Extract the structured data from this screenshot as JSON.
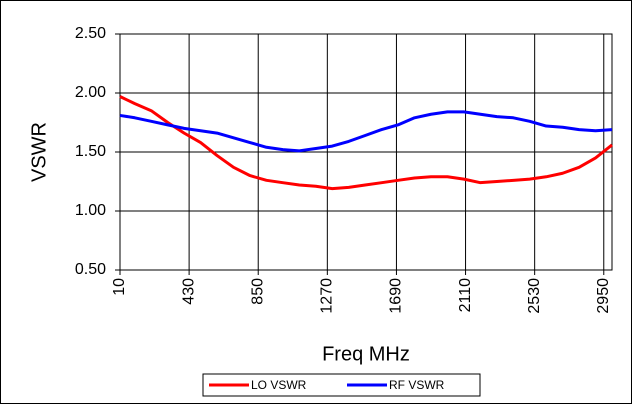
{
  "chart_data": {
    "type": "line",
    "x_label": "Freq MHz",
    "y_label": "VSWR",
    "x": [
      10,
      100,
      200,
      300,
      400,
      500,
      600,
      700,
      800,
      900,
      1000,
      1100,
      1200,
      1300,
      1400,
      1500,
      1600,
      1700,
      1800,
      1900,
      2000,
      2100,
      2200,
      2300,
      2400,
      2500,
      2600,
      2700,
      2800,
      2900,
      3000
    ],
    "series": [
      {
        "name": "LO VSWR",
        "color": "#ff0000",
        "values": [
          1.97,
          1.91,
          1.85,
          1.75,
          1.66,
          1.58,
          1.47,
          1.37,
          1.3,
          1.26,
          1.24,
          1.22,
          1.21,
          1.19,
          1.2,
          1.22,
          1.24,
          1.26,
          1.28,
          1.29,
          1.29,
          1.27,
          1.24,
          1.25,
          1.26,
          1.27,
          1.29,
          1.32,
          1.37,
          1.45,
          1.56
        ]
      },
      {
        "name": "RF VSWR",
        "color": "#0000ff",
        "values": [
          1.81,
          1.79,
          1.76,
          1.73,
          1.7,
          1.68,
          1.66,
          1.62,
          1.58,
          1.54,
          1.52,
          1.51,
          1.53,
          1.55,
          1.59,
          1.64,
          1.69,
          1.73,
          1.79,
          1.82,
          1.84,
          1.84,
          1.82,
          1.8,
          1.79,
          1.76,
          1.72,
          1.71,
          1.69,
          1.68,
          1.69
        ]
      }
    ],
    "xlim": [
      10,
      3000
    ],
    "xticks": [
      10,
      430,
      850,
      1270,
      1690,
      2110,
      2530,
      2950
    ],
    "ylim": [
      0.5,
      2.5
    ],
    "yticks": [
      {
        "value": 0.5,
        "label": "0.50"
      },
      {
        "value": 1,
        "label": "1.00"
      },
      {
        "value": 1.5,
        "label": "1.50"
      },
      {
        "value": 2,
        "label": "2.00"
      },
      {
        "value": 2.5,
        "label": "2.50"
      }
    ],
    "grid": true,
    "legend": "bottom"
  }
}
